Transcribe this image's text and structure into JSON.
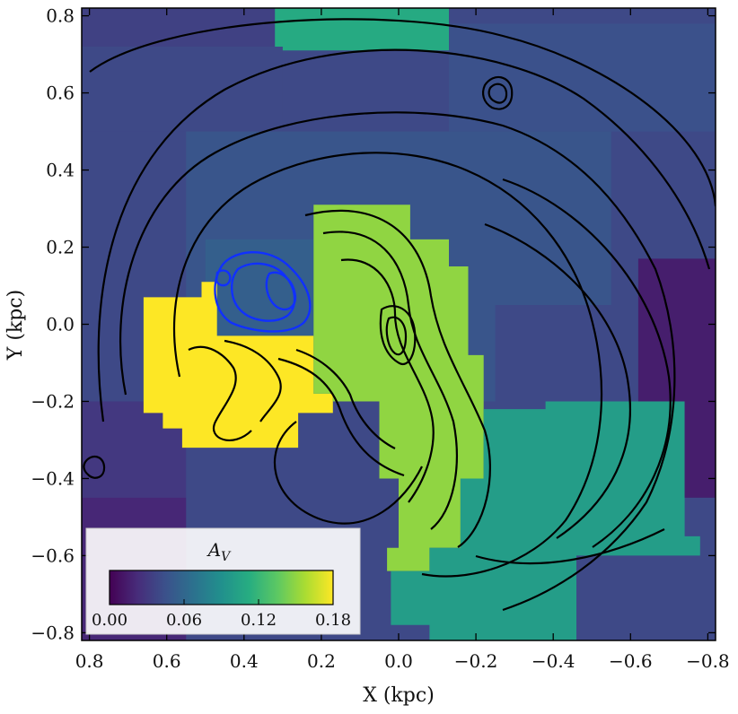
{
  "chart_data": {
    "type": "heatmap",
    "title": "",
    "xlabel": "X (kpc)",
    "ylabel": "Y (kpc)",
    "xlim": [
      0.82,
      -0.82
    ],
    "ylim": [
      -0.82,
      0.82
    ],
    "x_ticks": [
      0.8,
      0.6,
      0.4,
      0.2,
      0.0,
      -0.2,
      -0.4,
      -0.6,
      -0.8
    ],
    "x_tick_labels": [
      "0.8",
      "0.6",
      "0.4",
      "0.2",
      "0.0",
      "−0.2",
      "−0.4",
      "−0.6",
      "−0.8"
    ],
    "y_ticks": [
      0.8,
      0.6,
      0.4,
      0.2,
      0.0,
      -0.2,
      -0.4,
      -0.6,
      -0.8
    ],
    "y_tick_labels": [
      "0.8",
      "0.6",
      "0.4",
      "0.2",
      "0.0",
      "−0.2",
      "−0.4",
      "−0.6",
      "−0.8"
    ],
    "grid": false,
    "colorbar": {
      "label": "A_V",
      "label_main": "A",
      "label_sub": "V",
      "vmin": 0.0,
      "vmax": 0.18,
      "ticks": [
        0.0,
        0.06,
        0.12,
        0.18
      ],
      "tick_labels": [
        "0.00",
        "0.06",
        "0.12",
        "0.18"
      ],
      "colormap": "viridis",
      "placement": "lower-left"
    },
    "regions": [
      {
        "name": "background",
        "value": 0.04,
        "polygon": [
          [
            0.82,
            0.82
          ],
          [
            -0.82,
            0.82
          ],
          [
            -0.82,
            -0.82
          ],
          [
            0.82,
            -0.82
          ]
        ]
      },
      {
        "name": "outer-ne",
        "value": 0.035,
        "polygon": [
          [
            0.82,
            0.82
          ],
          [
            0.3,
            0.82
          ],
          [
            0.3,
            0.72
          ],
          [
            0.82,
            0.72
          ]
        ]
      },
      {
        "name": "top-block",
        "value": 0.11,
        "polygon": [
          [
            0.32,
            0.82
          ],
          [
            -0.13,
            0.82
          ],
          [
            -0.13,
            0.71
          ],
          [
            0.32,
            0.71
          ]
        ]
      },
      {
        "name": "upper-left",
        "value": 0.04,
        "polygon": [
          [
            0.82,
            0.72
          ],
          [
            0.3,
            0.72
          ],
          [
            0.3,
            0.5
          ],
          [
            0.82,
            0.5
          ]
        ]
      },
      {
        "name": "upper-right",
        "value": 0.045,
        "polygon": [
          [
            -0.13,
            0.78
          ],
          [
            -0.82,
            0.78
          ],
          [
            -0.82,
            0.5
          ],
          [
            -0.13,
            0.5
          ]
        ]
      },
      {
        "name": "inner-ring",
        "value": 0.048,
        "polygon": [
          [
            0.55,
            0.5
          ],
          [
            -0.55,
            0.5
          ],
          [
            -0.55,
            0.05
          ],
          [
            -0.25,
            0.05
          ],
          [
            -0.25,
            -0.2
          ],
          [
            0.55,
            -0.2
          ]
        ]
      },
      {
        "name": "west-low",
        "value": 0.03,
        "polygon": [
          [
            0.82,
            -0.2
          ],
          [
            0.55,
            -0.2
          ],
          [
            0.55,
            -0.82
          ],
          [
            0.82,
            -0.82
          ]
        ]
      },
      {
        "name": "blue-knot",
        "value": 0.055,
        "polygon": [
          [
            0.5,
            0.22
          ],
          [
            0.22,
            0.22
          ],
          [
            0.22,
            -0.03
          ],
          [
            0.5,
            -0.03
          ]
        ]
      },
      {
        "name": "yellow-patch",
        "value": 0.18,
        "polygon": [
          [
            0.66,
            0.07
          ],
          [
            0.51,
            0.07
          ],
          [
            0.51,
            0.11
          ],
          [
            0.47,
            0.11
          ],
          [
            0.47,
            -0.03
          ],
          [
            0.22,
            -0.03
          ],
          [
            0.22,
            -0.18
          ],
          [
            0.17,
            -0.18
          ],
          [
            0.17,
            -0.23
          ],
          [
            0.26,
            -0.23
          ],
          [
            0.26,
            -0.32
          ],
          [
            0.56,
            -0.32
          ],
          [
            0.56,
            -0.27
          ],
          [
            0.61,
            -0.27
          ],
          [
            0.61,
            -0.23
          ],
          [
            0.66,
            -0.23
          ]
        ]
      },
      {
        "name": "green-arm",
        "value": 0.15,
        "polygon": [
          [
            0.22,
            0.31
          ],
          [
            -0.03,
            0.31
          ],
          [
            -0.03,
            0.22
          ],
          [
            -0.13,
            0.22
          ],
          [
            -0.13,
            0.15
          ],
          [
            -0.18,
            0.15
          ],
          [
            -0.18,
            -0.08
          ],
          [
            -0.22,
            -0.08
          ],
          [
            -0.22,
            -0.4
          ],
          [
            -0.16,
            -0.4
          ],
          [
            -0.16,
            -0.58
          ],
          [
            -0.08,
            -0.58
          ],
          [
            -0.08,
            -0.64
          ],
          [
            0.03,
            -0.64
          ],
          [
            0.03,
            -0.58
          ],
          [
            0.0,
            -0.58
          ],
          [
            0.0,
            -0.4
          ],
          [
            0.05,
            -0.4
          ],
          [
            0.05,
            -0.2
          ],
          [
            0.17,
            -0.2
          ],
          [
            0.17,
            -0.18
          ],
          [
            0.22,
            -0.18
          ]
        ]
      },
      {
        "name": "teal-south",
        "value": 0.1,
        "polygon": [
          [
            0.03,
            -0.58
          ],
          [
            0.03,
            -0.64
          ],
          [
            -0.08,
            -0.64
          ],
          [
            -0.08,
            -0.58
          ],
          [
            -0.16,
            -0.58
          ],
          [
            -0.16,
            -0.4
          ],
          [
            -0.22,
            -0.4
          ],
          [
            -0.22,
            -0.22
          ],
          [
            -0.38,
            -0.22
          ],
          [
            -0.38,
            -0.2
          ],
          [
            -0.74,
            -0.2
          ],
          [
            -0.74,
            -0.55
          ],
          [
            -0.78,
            -0.55
          ],
          [
            -0.78,
            -0.6
          ],
          [
            -0.46,
            -0.6
          ],
          [
            -0.46,
            -0.82
          ],
          [
            -0.08,
            -0.82
          ],
          [
            -0.08,
            -0.78
          ],
          [
            0.02,
            -0.78
          ],
          [
            0.02,
            -0.64
          ],
          [
            0.03,
            -0.64
          ]
        ]
      },
      {
        "name": "east-dark",
        "value": 0.015,
        "polygon": [
          [
            -0.62,
            0.17
          ],
          [
            -0.82,
            0.17
          ],
          [
            -0.82,
            -0.45
          ],
          [
            -0.74,
            -0.45
          ],
          [
            -0.74,
            -0.2
          ],
          [
            -0.62,
            -0.2
          ]
        ]
      },
      {
        "name": "sw-dark",
        "value": 0.02,
        "polygon": [
          [
            0.82,
            -0.45
          ],
          [
            0.55,
            -0.45
          ],
          [
            0.55,
            -0.82
          ],
          [
            0.82,
            -0.82
          ]
        ]
      }
    ],
    "contours": {
      "color": "#000000",
      "highlight_color": "#1030ff",
      "highlight_region": "blue-knot"
    }
  }
}
